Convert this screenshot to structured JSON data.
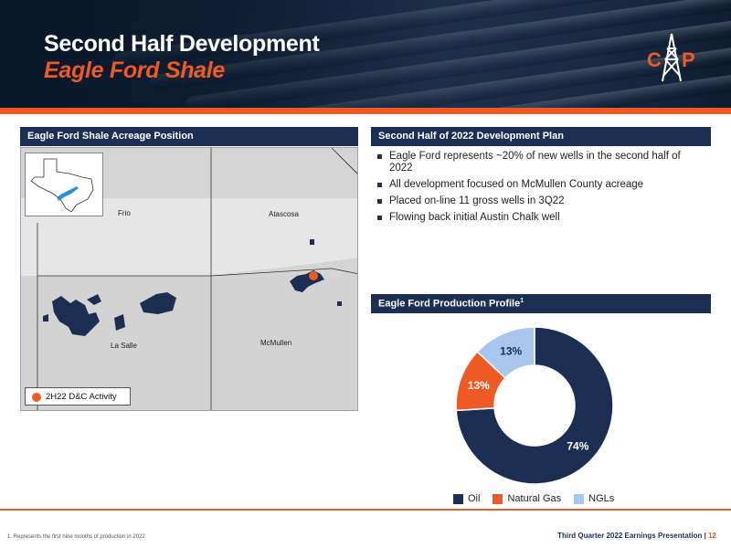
{
  "header": {
    "title": "Second Half Development",
    "subtitle": "Eagle Ford Shale",
    "logo_text": "CAP"
  },
  "map_panel": {
    "title": "Eagle Ford Shale Acreage Position",
    "counties": [
      "Frio",
      "Atascosa",
      "La Salle",
      "McMullen"
    ],
    "legend_label": "2H22 D&C Activity",
    "colors": {
      "acreage": "#1c2f52",
      "activity": "#ef5a24",
      "play": "#2f8fd6"
    }
  },
  "plan_panel": {
    "title": "Second Half of 2022 Development Plan",
    "bullets": [
      "Eagle Ford represents ~20% of new wells in the second half of 2022",
      "All development focused on McMullen County acreage",
      "Placed on-line 11 gross wells in 3Q22",
      "Flowing back initial Austin Chalk well"
    ]
  },
  "production_panel": {
    "title": "Eagle Ford Production Profile",
    "title_sup": "1"
  },
  "chart_data": {
    "type": "pie",
    "donut": true,
    "categories": [
      "Oil",
      "Natural Gas",
      "NGLs"
    ],
    "values": [
      74,
      13,
      13
    ],
    "labels": [
      "74%",
      "13%",
      "13%"
    ],
    "colors": [
      "#1c2f52",
      "#ef5a24",
      "#a9c6ee"
    ],
    "legend_position": "bottom"
  },
  "footer": {
    "footnote": "1.  Represents the first nine months of production in 2022",
    "presentation": "Third Quarter 2022 Earnings Presentation",
    "separator": " | ",
    "page": "12"
  }
}
